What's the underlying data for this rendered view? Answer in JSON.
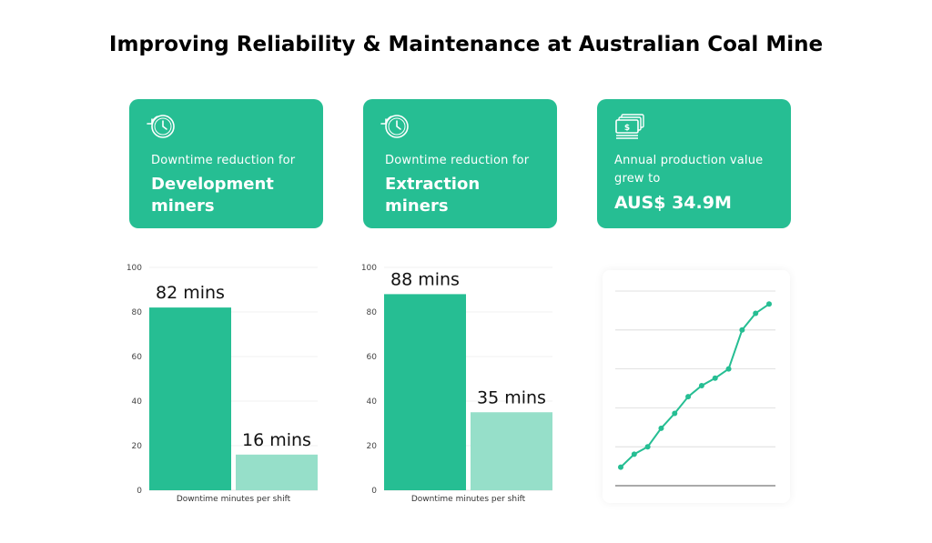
{
  "page": {
    "title": "Improving Reliability & Maintenance at Australian Coal Mine"
  },
  "colors": {
    "brand": "#26be93",
    "bar_light": "#96dfc9",
    "white": "#ffffff"
  },
  "cards": [
    {
      "icon": "clock-rewind-icon",
      "small": "Downtime reduction for",
      "big_lines": [
        "Development",
        "miners"
      ]
    },
    {
      "icon": "clock-rewind-icon",
      "small": "Downtime reduction for",
      "big_lines": [
        "Extraction",
        "miners"
      ]
    },
    {
      "icon": "money-stack-icon",
      "small_lines": [
        "Annual production value",
        "grew to"
      ],
      "big": "AUS$ 34.9M"
    }
  ],
  "chart_data": [
    {
      "type": "bar",
      "categories": [
        "",
        ""
      ],
      "values": [
        82,
        16
      ],
      "data_labels": [
        "82 mins",
        "16 mins"
      ],
      "xlabel": "Downtime minutes per shift",
      "ylabel": "",
      "ylim": [
        0,
        100
      ],
      "yticks": [
        0,
        20,
        40,
        60,
        80,
        100
      ],
      "grid": true
    },
    {
      "type": "bar",
      "categories": [
        "",
        ""
      ],
      "values": [
        88,
        35
      ],
      "data_labels": [
        "88 mins",
        "35 mins"
      ],
      "xlabel": "Downtime minutes per shift",
      "ylabel": "",
      "ylim": [
        0,
        100
      ],
      "yticks": [
        0,
        20,
        40,
        60,
        80,
        100
      ],
      "grid": true
    },
    {
      "type": "line",
      "x": [
        1,
        2,
        3,
        4,
        5,
        6,
        7,
        8,
        9,
        10,
        11,
        12
      ],
      "values": [
        10,
        17,
        21,
        31,
        39,
        48,
        54,
        58,
        63,
        84,
        93,
        98
      ],
      "ylim": [
        0,
        105
      ],
      "grid": true
    }
  ]
}
